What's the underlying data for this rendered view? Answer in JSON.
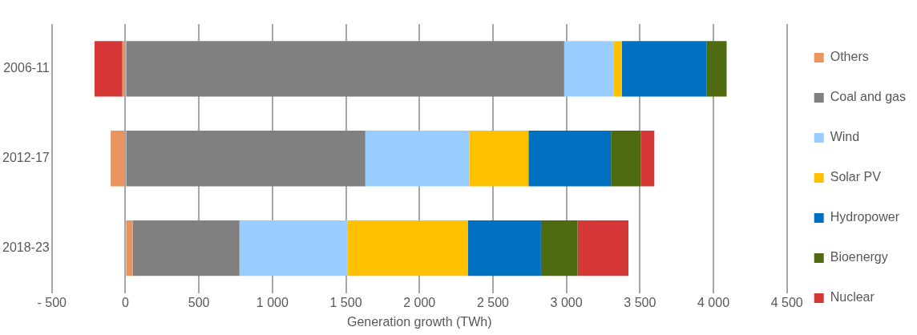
{
  "chart_data": {
    "type": "bar",
    "orientation": "horizontal",
    "stacked": true,
    "xlabel": "Generation growth (TWh)",
    "categories": [
      "2006-11",
      "2012-17",
      "2018-23"
    ],
    "series": [
      {
        "name": "Others",
        "color": "#e8955f",
        "values": [
          -20,
          -100,
          50
        ]
      },
      {
        "name": "Coal and gas",
        "color": "#808080",
        "values": [
          2985,
          1632,
          726
        ]
      },
      {
        "name": "Wind",
        "color": "#99ccff",
        "values": [
          335,
          708,
          737
        ]
      },
      {
        "name": "Solar PV",
        "color": "#ffc000",
        "values": [
          57,
          402,
          816
        ]
      },
      {
        "name": "Hydropower",
        "color": "#0070c0",
        "values": [
          578,
          561,
          498
        ]
      },
      {
        "name": "Bioenergy",
        "color": "#4e6b12",
        "values": [
          135,
          204,
          249
        ]
      },
      {
        "name": "Nuclear",
        "color": "#d63838",
        "values": [
          -190,
          91,
          346
        ]
      }
    ],
    "xlim": [
      -500,
      4500
    ],
    "xticks": [
      {
        "value": -500,
        "label": "- 500"
      },
      0,
      500,
      {
        "value": 1000,
        "label": "1 000"
      },
      {
        "value": 1500,
        "label": "1 500"
      },
      {
        "value": 2000,
        "label": "2 000"
      },
      {
        "value": 2500,
        "label": "2 500"
      },
      {
        "value": 3000,
        "label": "3 000"
      },
      {
        "value": 3500,
        "label": "3 500"
      },
      {
        "value": 4000,
        "label": "4 000"
      },
      {
        "value": 4500,
        "label": "4 500"
      }
    ],
    "grid": "x",
    "legend": "right"
  }
}
